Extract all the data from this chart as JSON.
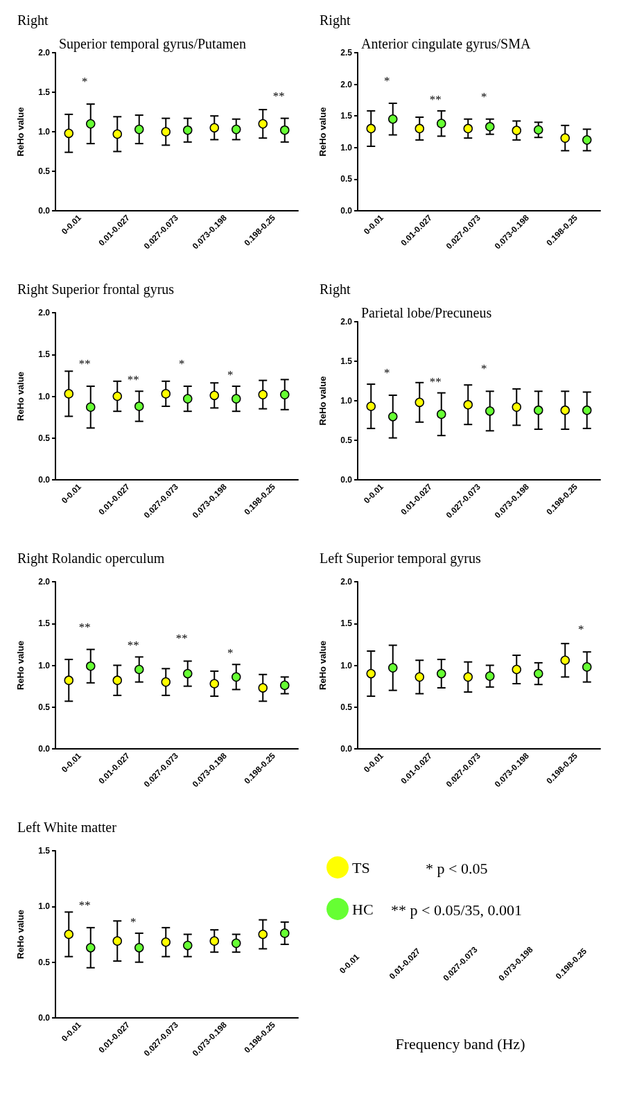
{
  "chart_data": [
    {
      "type": "scatter",
      "title": "Right",
      "subtitle": "Superior temporal gyrus/Putamen",
      "ylabel": "ReHo value",
      "categories": [
        "0-0.01",
        "0.01-0.027",
        "0.027-0.073",
        "0.073-0.198",
        "0.198-0.25"
      ],
      "ylim": [
        0,
        2
      ],
      "yticks": [
        {
          "value": 0,
          "label": "0.0"
        },
        0.5,
        {
          "value": 1,
          "label": "1.0"
        },
        1.5,
        {
          "value": 2,
          "label": "2.0"
        }
      ],
      "series": [
        {
          "color": "#ffff00",
          "values": [
            0.98,
            0.97,
            1.0,
            1.05,
            1.1
          ],
          "errors": [
            0.24,
            0.22,
            0.17,
            0.15,
            0.18
          ]
        },
        {
          "color": "#66ff33",
          "values": [
            1.1,
            1.03,
            1.02,
            1.03,
            1.02
          ],
          "errors": [
            0.25,
            0.18,
            0.15,
            0.13,
            0.15
          ],
          "value_labels": [
            "*",
            null,
            null,
            null,
            "**"
          ]
        }
      ]
    },
    {
      "type": "scatter",
      "title": "Right",
      "subtitle": "Anterior cingulate gyrus/SMA",
      "ylabel": "ReHo value",
      "categories": [
        "0-0.01",
        "0.01-0.027",
        "0.027-0.073",
        "0.073-0.198",
        "0.198-0.25"
      ],
      "ylim": [
        0,
        2.5
      ],
      "yticks": [
        {
          "value": 0,
          "label": "0.0"
        },
        0.5,
        {
          "value": 1,
          "label": "1.0"
        },
        1.5,
        {
          "value": 2,
          "label": "2.0"
        },
        2.5
      ],
      "series": [
        {
          "color": "#ffff00",
          "values": [
            1.3,
            1.3,
            1.3,
            1.27,
            1.15
          ],
          "errors": [
            0.28,
            0.18,
            0.15,
            0.15,
            0.2
          ]
        },
        {
          "color": "#66ff33",
          "values": [
            1.45,
            1.38,
            1.33,
            1.28,
            1.12
          ],
          "errors": [
            0.25,
            0.2,
            0.12,
            0.12,
            0.17
          ],
          "value_labels": [
            "*",
            "**",
            "*",
            null,
            null
          ]
        }
      ]
    },
    {
      "type": "scatter",
      "title": "Right Superior frontal gyrus",
      "ylabel": "ReHo value",
      "categories": [
        "0-0.01",
        "0.01-0.027",
        "0.027-0.073",
        "0.073-0.198",
        "0.198-0.25"
      ],
      "ylim": [
        0,
        2
      ],
      "yticks": [
        {
          "value": 0,
          "label": "0.0"
        },
        0.5,
        {
          "value": 1,
          "label": "1.0"
        },
        1.5,
        {
          "value": 2,
          "label": "2.0"
        }
      ],
      "series": [
        {
          "color": "#ffff00",
          "values": [
            1.03,
            1.0,
            1.03,
            1.01,
            1.02
          ],
          "errors": [
            0.27,
            0.18,
            0.15,
            0.15,
            0.17
          ]
        },
        {
          "color": "#66ff33",
          "values": [
            0.87,
            0.88,
            0.97,
            0.97,
            1.02
          ],
          "errors": [
            0.25,
            0.18,
            0.15,
            0.15,
            0.18
          ],
          "value_labels": [
            "**",
            "**",
            "*",
            "*",
            null
          ]
        }
      ]
    },
    {
      "type": "scatter",
      "title": "Right",
      "subtitle": "Parietal lobe/Precuneus",
      "ylabel": "ReHo value",
      "categories": [
        "0-0.01",
        "0.01-0.027",
        "0.027-0.073",
        "0.073-0.198",
        "0.198-0.25"
      ],
      "ylim": [
        0,
        2
      ],
      "yticks": [
        {
          "value": 0,
          "label": "0.0"
        },
        0.5,
        {
          "value": 1,
          "label": "1.0"
        },
        1.5,
        {
          "value": 2,
          "label": "2.0"
        }
      ],
      "series": [
        {
          "color": "#ffff00",
          "values": [
            0.93,
            0.98,
            0.95,
            0.92,
            0.88
          ],
          "errors": [
            0.28,
            0.25,
            0.25,
            0.23,
            0.24
          ]
        },
        {
          "color": "#66ff33",
          "values": [
            0.8,
            0.83,
            0.87,
            0.88,
            0.88
          ],
          "errors": [
            0.27,
            0.27,
            0.25,
            0.24,
            0.23
          ],
          "value_labels": [
            "*",
            "**",
            "*",
            null,
            null
          ]
        }
      ]
    },
    {
      "type": "scatter",
      "title": "Right Rolandic operculum",
      "ylabel": "ReHo value",
      "categories": [
        "0-0.01",
        "0.01-0.027",
        "0.027-0.073",
        "0.073-0.198",
        "0.198-0.25"
      ],
      "ylim": [
        0,
        2
      ],
      "yticks": [
        {
          "value": 0,
          "label": "0.0"
        },
        0.5,
        {
          "value": 1,
          "label": "1.0"
        },
        1.5,
        {
          "value": 2,
          "label": "2.0"
        }
      ],
      "series": [
        {
          "color": "#ffff00",
          "values": [
            0.82,
            0.82,
            0.8,
            0.78,
            0.73
          ],
          "errors": [
            0.25,
            0.18,
            0.16,
            0.15,
            0.16
          ]
        },
        {
          "color": "#66ff33",
          "values": [
            0.99,
            0.95,
            0.9,
            0.86,
            0.76
          ],
          "errors": [
            0.2,
            0.15,
            0.15,
            0.15,
            0.1
          ],
          "value_labels": [
            "**",
            "**",
            "**",
            "*",
            null
          ]
        }
      ]
    },
    {
      "type": "scatter",
      "title": "Left Superior temporal gyrus",
      "ylabel": "ReHo value",
      "categories": [
        "0-0.01",
        "0.01-0.027",
        "0.027-0.073",
        "0.073-0.198",
        "0.198-0.25"
      ],
      "ylim": [
        0,
        2
      ],
      "yticks": [
        {
          "value": 0,
          "label": "0.0"
        },
        0.5,
        {
          "value": 1,
          "label": "1.0"
        },
        1.5,
        {
          "value": 2,
          "label": "2.0"
        }
      ],
      "series": [
        {
          "color": "#ffff00",
          "values": [
            0.9,
            0.86,
            0.86,
            0.95,
            1.06
          ],
          "errors": [
            0.27,
            0.2,
            0.18,
            0.17,
            0.2
          ]
        },
        {
          "color": "#66ff33",
          "values": [
            0.97,
            0.9,
            0.87,
            0.9,
            0.98
          ],
          "errors": [
            0.27,
            0.17,
            0.13,
            0.13,
            0.18
          ],
          "value_labels": [
            null,
            null,
            null,
            null,
            "*"
          ]
        }
      ]
    },
    {
      "type": "scatter",
      "title": "Left White matter",
      "ylabel": "ReHo value",
      "legend": "right",
      "categories": [
        "0-0.01",
        "0.01-0.027",
        "0.027-0.073",
        "0.073-0.198",
        "0.198-0.25"
      ],
      "ylim": [
        0,
        1.5
      ],
      "yticks": [
        {
          "value": 0,
          "label": "0.0"
        },
        0.5,
        {
          "value": 1,
          "label": "1.0"
        },
        1.5
      ],
      "series": [
        {
          "name": "TS",
          "color": "#ffff00",
          "values": [
            0.75,
            0.69,
            0.68,
            0.69,
            0.75
          ],
          "errors": [
            0.2,
            0.18,
            0.13,
            0.1,
            0.13
          ]
        },
        {
          "name": "HC",
          "color": "#66ff33",
          "values": [
            0.63,
            0.63,
            0.65,
            0.67,
            0.76
          ],
          "errors": [
            0.18,
            0.13,
            0.1,
            0.08,
            0.1
          ],
          "value_labels": [
            "**",
            "*",
            null,
            null,
            null
          ]
        }
      ],
      "annotations": [
        "* p < 0.05",
        "** p < 0.05/35, 0.001"
      ]
    },
    {
      "type": "other",
      "xlabel": "Frequency band (Hz)",
      "categories": [
        "0-0.01",
        "0.01-0.027",
        "0.027-0.073",
        "0.073-0.198",
        "0.198-0.25"
      ]
    }
  ]
}
